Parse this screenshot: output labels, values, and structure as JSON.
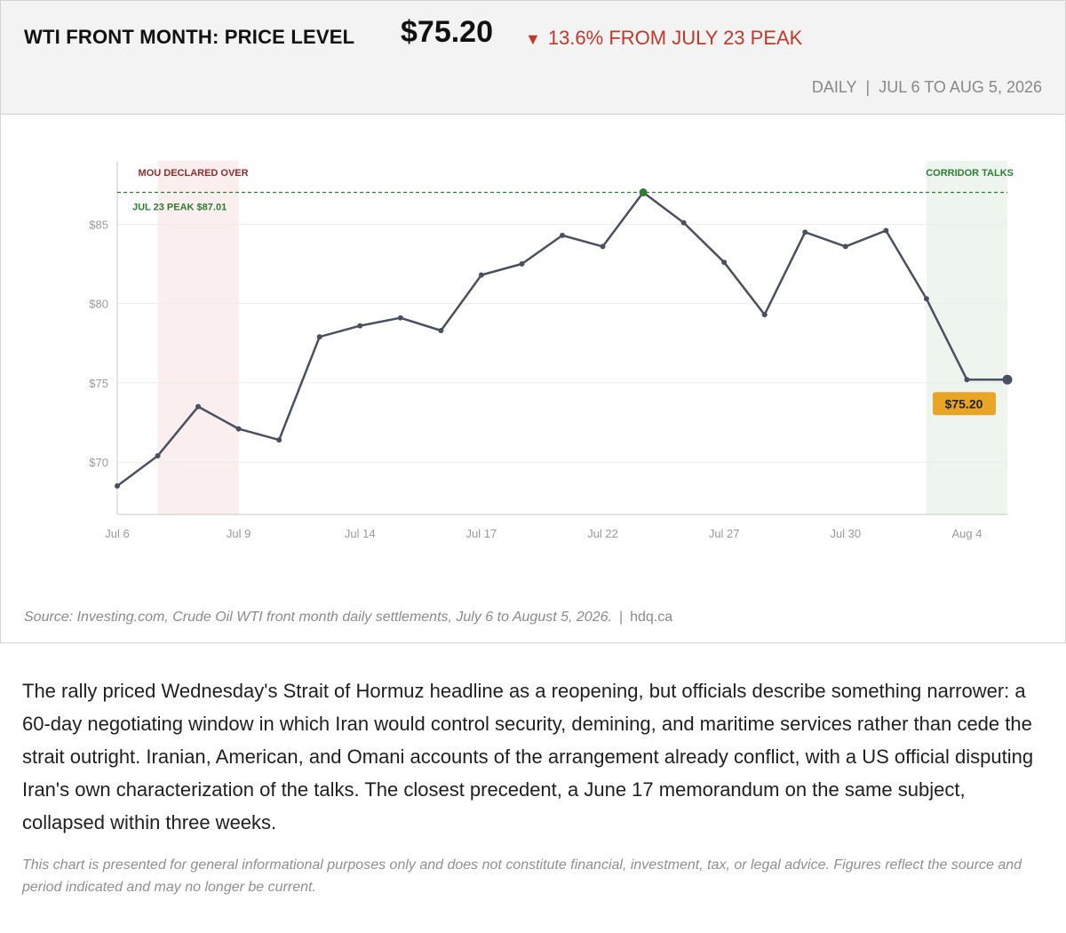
{
  "header": {
    "title": "WTI FRONT MONTH: PRICE LEVEL",
    "price": "$75.20",
    "change_arrow": "▼",
    "change_text": "13.6% FROM JULY 23 PEAK",
    "frequency": "DAILY",
    "separator": "|",
    "period": "JUL 6 TO AUG 5, 2026"
  },
  "colors": {
    "line": "#4a5060",
    "peak_green": "#2e7d32",
    "down_red": "#c0392b",
    "mou_band": "#fbeeee",
    "corridor_band": "#edf5ee",
    "badge": "#e9a626"
  },
  "chart_data": {
    "type": "line",
    "x_dates": [
      "Jul 6",
      "Jul 7",
      "Jul 8",
      "Jul 9",
      "Jul 10",
      "Jul 13",
      "Jul 14",
      "Jul 15",
      "Jul 16",
      "Jul 17",
      "Jul 20",
      "Jul 21",
      "Jul 22",
      "Jul 23",
      "Jul 24",
      "Jul 27",
      "Jul 28",
      "Jul 29",
      "Jul 30",
      "Jul 31",
      "Aug 3",
      "Aug 4",
      "Aug 5"
    ],
    "values": [
      68.5,
      70.4,
      73.5,
      72.1,
      71.4,
      77.9,
      78.6,
      79.1,
      78.3,
      81.8,
      82.5,
      84.3,
      83.6,
      87.01,
      85.1,
      82.6,
      79.3,
      84.5,
      83.6,
      84.6,
      80.3,
      75.2,
      75.2
    ],
    "x_tick_labels": [
      "Jul 6",
      "Jul 9",
      "Jul 14",
      "Jul 17",
      "Jul 22",
      "Jul 27",
      "Jul 30",
      "Aug 4"
    ],
    "y_ticks": [
      70,
      75,
      80,
      85
    ],
    "y_tick_labels": [
      "$70",
      "$75",
      "$80",
      "$85"
    ],
    "ylim": [
      66.7,
      89
    ],
    "grid": true,
    "reference_line": {
      "value": 87.01,
      "label": "JUL 23 PEAK $87.01"
    },
    "bands": [
      {
        "label": "MOU DECLARED OVER",
        "from": "Jul 7",
        "to": "Jul 9"
      },
      {
        "label": "CORRIDOR TALKS",
        "from": "Aug 3",
        "to": "Aug 5"
      }
    ],
    "last_value_label": "$75.20"
  },
  "source": {
    "text": "Source: Investing.com, Crude Oil WTI front month daily settlements, July 6 to August 5, 2026.",
    "separator": "|",
    "site": "hdq.ca"
  },
  "article": {
    "paragraph": "The rally priced Wednesday's Strait of Hormuz headline as a reopening, but officials describe something narrower: a 60-day negotiating window in which Iran would control security, demining, and maritime services rather than cede the strait outright. Iranian, American, and Omani accounts of the arrangement already conflict, with a US official disputing Iran's own characterization of the talks. The closest precedent, a June 17 memorandum on the same subject, collapsed within three weeks.",
    "disclaimer": "This chart is presented for general informational purposes only and does not constitute financial, investment, tax, or legal advice. Figures reflect the source and period indicated and may no longer be current."
  }
}
